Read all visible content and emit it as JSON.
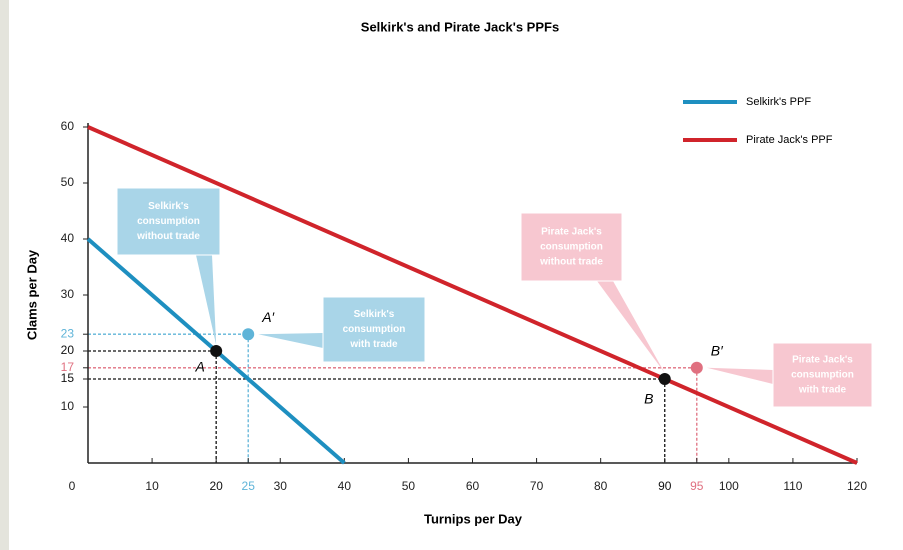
{
  "chart_data": {
    "type": "line",
    "title": "Selkirk's and Pirate Jack's PPFs",
    "x_label": "Turnips per Day",
    "y_label": "Clams per Day",
    "xlim": [
      0,
      120
    ],
    "ylim": [
      0,
      60
    ],
    "xticks": [
      0,
      10,
      20,
      25,
      30,
      40,
      50,
      60,
      70,
      80,
      90,
      95,
      100,
      110,
      120
    ],
    "yticks": [
      10,
      15,
      17,
      20,
      23,
      30,
      40,
      50,
      60
    ],
    "legend": "upper right",
    "series": [
      {
        "name": "Selkirk's PPF",
        "color": "#1e8fc0",
        "x": [
          0,
          40
        ],
        "y": [
          40,
          0
        ]
      },
      {
        "name": "Pirate Jack's PPF",
        "color": "#d0242b",
        "x": [
          0,
          120
        ],
        "y": [
          60,
          0
        ]
      }
    ],
    "points": [
      {
        "label": "A",
        "x": 20,
        "y": 20,
        "color": "#111111"
      },
      {
        "label": "A′",
        "x": 25,
        "y": 23,
        "color": "#5fb4d8"
      },
      {
        "label": "B",
        "x": 90,
        "y": 15,
        "color": "#111111"
      },
      {
        "label": "B′",
        "x": 95,
        "y": 17,
        "color": "#e07080"
      }
    ],
    "annotations": [
      {
        "lines": [
          "Selkirk's",
          "consumption",
          "without trade"
        ],
        "color": "#a9d5e8"
      },
      {
        "lines": [
          "Selkirk's",
          "consumption",
          "with trade"
        ],
        "color": "#a9d5e8"
      },
      {
        "lines": [
          "Pirate Jack's",
          "consumption",
          "without trade"
        ],
        "color": "#f7c7d0"
      },
      {
        "lines": [
          "Pirate Jack's",
          "consumption",
          "with trade"
        ],
        "color": "#f7c7d0"
      }
    ]
  }
}
